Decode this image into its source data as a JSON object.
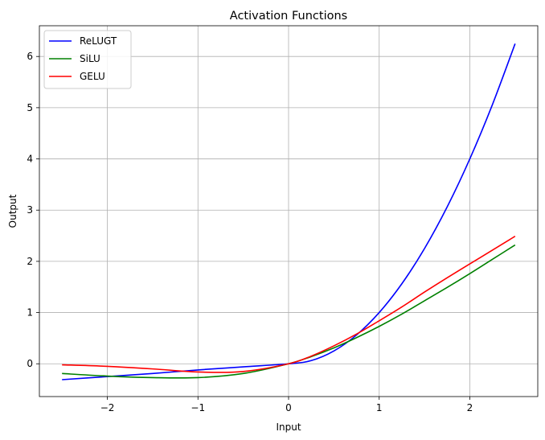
{
  "chart_data": {
    "type": "line",
    "title": "Activation Functions",
    "xlabel": "Input",
    "ylabel": "Output",
    "xlim": [
      -2.75,
      2.75
    ],
    "ylim": [
      -0.64,
      6.6
    ],
    "xticks": [
      -2,
      -1,
      0,
      1,
      2
    ],
    "yticks": [
      0,
      1,
      2,
      3,
      4,
      5,
      6
    ],
    "xtick_labels": [
      "−2",
      "−1",
      "0",
      "1",
      "2"
    ],
    "ytick_labels": [
      "0",
      "1",
      "2",
      "3",
      "4",
      "5",
      "6"
    ],
    "grid": true,
    "legend_position": "top-left",
    "x": [
      -2.5,
      -2.0,
      -1.5,
      -1.0,
      -0.5,
      0.0,
      0.25,
      0.5,
      0.75,
      1.0,
      1.25,
      1.5,
      1.75,
      2.0,
      2.25,
      2.5
    ],
    "series": [
      {
        "name": "ReLUGT",
        "color": "#0000ff",
        "values": [
          -0.31,
          -0.25,
          -0.19,
          -0.12,
          -0.06,
          0.0,
          0.0625,
          0.25,
          0.5625,
          1.0,
          1.5625,
          2.25,
          3.0625,
          4.0,
          5.0625,
          6.25
        ]
      },
      {
        "name": "SiLU",
        "color": "#008000",
        "values": [
          -0.19,
          -0.24,
          -0.27,
          -0.27,
          -0.19,
          0.0,
          0.14,
          0.31,
          0.51,
          0.73,
          0.97,
          1.23,
          1.49,
          1.76,
          2.04,
          2.32
        ]
      },
      {
        "name": "GELU",
        "color": "#ff0000",
        "values": [
          -0.02,
          -0.05,
          -0.1,
          -0.16,
          -0.15,
          0.0,
          0.15,
          0.35,
          0.58,
          0.84,
          1.11,
          1.4,
          1.68,
          1.95,
          2.22,
          2.49
        ]
      }
    ]
  }
}
